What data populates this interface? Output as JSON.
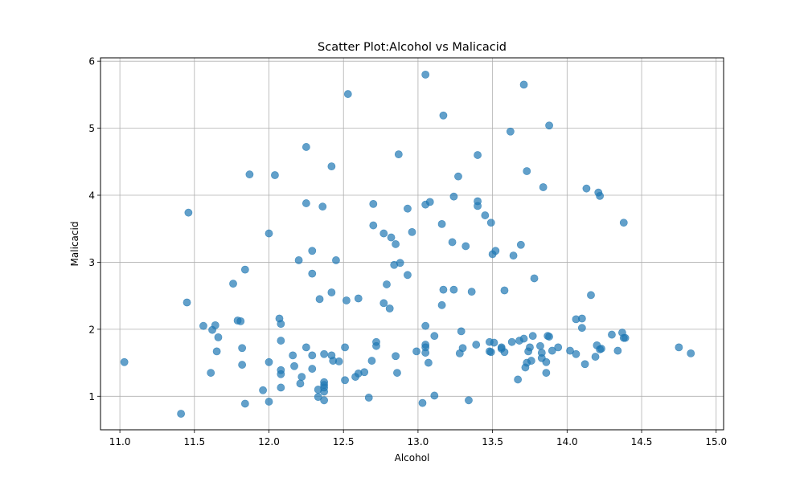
{
  "chart_data": {
    "type": "scatter",
    "title": "Scatter Plot:Alcohol vs Malicacid",
    "xlabel": "Alcohol",
    "ylabel": "Malicacid",
    "xlim": [
      10.87,
      15.05
    ],
    "ylim": [
      0.5,
      6.05
    ],
    "xticks": [
      11.0,
      11.5,
      12.0,
      12.5,
      13.0,
      13.5,
      14.0,
      14.5,
      15.0
    ],
    "xtick_labels": [
      "11.0",
      "11.5",
      "12.0",
      "12.5",
      "13.0",
      "13.5",
      "14.0",
      "14.5",
      "15.0"
    ],
    "yticks": [
      1,
      2,
      3,
      4,
      5,
      6
    ],
    "ytick_labels": [
      "1",
      "2",
      "3",
      "4",
      "5",
      "6"
    ],
    "grid": true,
    "marker_color": "#1f77b4",
    "marker_alpha": 0.7,
    "points": [
      [
        11.03,
        1.51
      ],
      [
        11.41,
        0.74
      ],
      [
        11.45,
        2.4
      ],
      [
        11.46,
        3.74
      ],
      [
        11.56,
        2.05
      ],
      [
        11.61,
        1.35
      ],
      [
        11.62,
        1.99
      ],
      [
        11.64,
        2.06
      ],
      [
        11.65,
        1.67
      ],
      [
        11.66,
        1.88
      ],
      [
        11.76,
        2.68
      ],
      [
        11.79,
        2.13
      ],
      [
        11.81,
        2.12
      ],
      [
        11.82,
        1.72
      ],
      [
        11.82,
        1.47
      ],
      [
        11.84,
        0.89
      ],
      [
        11.84,
        2.89
      ],
      [
        11.87,
        4.31
      ],
      [
        11.96,
        1.09
      ],
      [
        12.0,
        0.92
      ],
      [
        12.0,
        3.43
      ],
      [
        12.0,
        1.51
      ],
      [
        12.04,
        4.3
      ],
      [
        12.07,
        2.16
      ],
      [
        12.08,
        1.13
      ],
      [
        12.08,
        1.33
      ],
      [
        12.08,
        1.83
      ],
      [
        12.08,
        2.08
      ],
      [
        12.08,
        1.39
      ],
      [
        12.16,
        1.61
      ],
      [
        12.17,
        1.45
      ],
      [
        12.2,
        3.03
      ],
      [
        12.21,
        1.19
      ],
      [
        12.22,
        1.29
      ],
      [
        12.25,
        1.73
      ],
      [
        12.25,
        3.88
      ],
      [
        12.25,
        4.72
      ],
      [
        12.29,
        1.61
      ],
      [
        12.29,
        2.83
      ],
      [
        12.29,
        1.41
      ],
      [
        12.29,
        3.17
      ],
      [
        12.33,
        0.99
      ],
      [
        12.33,
        1.1
      ],
      [
        12.34,
        2.45
      ],
      [
        12.36,
        3.83
      ],
      [
        12.37,
        1.07
      ],
      [
        12.37,
        1.17
      ],
      [
        12.37,
        1.13
      ],
      [
        12.37,
        1.21
      ],
      [
        12.37,
        0.94
      ],
      [
        12.37,
        1.63
      ],
      [
        12.42,
        4.43
      ],
      [
        12.42,
        2.55
      ],
      [
        12.42,
        1.61
      ],
      [
        12.43,
        1.53
      ],
      [
        12.45,
        3.03
      ],
      [
        12.47,
        1.52
      ],
      [
        12.51,
        1.73
      ],
      [
        12.51,
        1.24
      ],
      [
        12.52,
        2.43
      ],
      [
        12.53,
        5.51
      ],
      [
        12.58,
        1.29
      ],
      [
        12.6,
        1.34
      ],
      [
        12.6,
        2.46
      ],
      [
        12.64,
        1.36
      ],
      [
        12.67,
        0.98
      ],
      [
        12.69,
        1.53
      ],
      [
        12.7,
        3.87
      ],
      [
        12.7,
        3.55
      ],
      [
        12.72,
        1.75
      ],
      [
        12.72,
        1.81
      ],
      [
        12.77,
        3.43
      ],
      [
        12.77,
        2.39
      ],
      [
        12.79,
        2.67
      ],
      [
        12.81,
        2.31
      ],
      [
        12.82,
        3.37
      ],
      [
        12.84,
        2.96
      ],
      [
        12.85,
        3.27
      ],
      [
        12.85,
        1.6
      ],
      [
        12.86,
        1.35
      ],
      [
        12.87,
        4.61
      ],
      [
        12.88,
        2.99
      ],
      [
        12.93,
        3.8
      ],
      [
        12.93,
        2.81
      ],
      [
        12.96,
        3.45
      ],
      [
        12.99,
        1.67
      ],
      [
        13.03,
        0.9
      ],
      [
        13.05,
        1.73
      ],
      [
        13.05,
        3.86
      ],
      [
        13.05,
        1.77
      ],
      [
        13.05,
        1.65
      ],
      [
        13.05,
        5.8
      ],
      [
        13.05,
        2.05
      ],
      [
        13.07,
        1.5
      ],
      [
        13.08,
        3.9
      ],
      [
        13.11,
        1.01
      ],
      [
        13.11,
        1.9
      ],
      [
        13.16,
        3.57
      ],
      [
        13.16,
        2.36
      ],
      [
        13.17,
        5.19
      ],
      [
        13.17,
        2.59
      ],
      [
        13.23,
        3.3
      ],
      [
        13.24,
        2.59
      ],
      [
        13.24,
        3.98
      ],
      [
        13.27,
        4.28
      ],
      [
        13.28,
        1.64
      ],
      [
        13.29,
        1.97
      ],
      [
        13.3,
        1.72
      ],
      [
        13.32,
        3.24
      ],
      [
        13.34,
        0.94
      ],
      [
        13.36,
        2.56
      ],
      [
        13.39,
        1.77
      ],
      [
        13.4,
        4.6
      ],
      [
        13.4,
        3.91
      ],
      [
        13.4,
        3.84
      ],
      [
        13.45,
        3.7
      ],
      [
        13.48,
        1.81
      ],
      [
        13.48,
        1.67
      ],
      [
        13.49,
        1.66
      ],
      [
        13.49,
        3.59
      ],
      [
        13.5,
        3.12
      ],
      [
        13.51,
        1.8
      ],
      [
        13.52,
        3.17
      ],
      [
        13.56,
        1.71
      ],
      [
        13.56,
        1.73
      ],
      [
        13.58,
        1.66
      ],
      [
        13.58,
        2.58
      ],
      [
        13.62,
        4.95
      ],
      [
        13.63,
        1.81
      ],
      [
        13.64,
        3.1
      ],
      [
        13.67,
        1.25
      ],
      [
        13.68,
        1.83
      ],
      [
        13.69,
        3.26
      ],
      [
        13.71,
        1.86
      ],
      [
        13.71,
        5.65
      ],
      [
        13.72,
        1.43
      ],
      [
        13.73,
        4.36
      ],
      [
        13.73,
        1.5
      ],
      [
        13.74,
        1.67
      ],
      [
        13.75,
        1.73
      ],
      [
        13.76,
        1.53
      ],
      [
        13.77,
        1.9
      ],
      [
        13.78,
        2.76
      ],
      [
        13.82,
        1.75
      ],
      [
        13.83,
        1.57
      ],
      [
        13.83,
        1.65
      ],
      [
        13.84,
        4.12
      ],
      [
        13.86,
        1.35
      ],
      [
        13.86,
        1.51
      ],
      [
        13.87,
        1.9
      ],
      [
        13.88,
        1.89
      ],
      [
        13.88,
        5.04
      ],
      [
        13.9,
        1.68
      ],
      [
        13.94,
        1.73
      ],
      [
        14.02,
        1.68
      ],
      [
        14.06,
        2.15
      ],
      [
        14.06,
        1.63
      ],
      [
        14.1,
        2.16
      ],
      [
        14.1,
        2.02
      ],
      [
        14.12,
        1.48
      ],
      [
        14.13,
        4.1
      ],
      [
        14.16,
        2.51
      ],
      [
        14.19,
        1.59
      ],
      [
        14.2,
        1.76
      ],
      [
        14.21,
        4.04
      ],
      [
        14.22,
        3.99
      ],
      [
        14.22,
        1.7
      ],
      [
        14.23,
        1.71
      ],
      [
        14.3,
        1.92
      ],
      [
        14.34,
        1.68
      ],
      [
        14.37,
        1.95
      ],
      [
        14.38,
        1.87
      ],
      [
        14.38,
        3.59
      ],
      [
        14.39,
        1.87
      ],
      [
        14.75,
        1.73
      ],
      [
        14.83,
        1.64
      ]
    ]
  }
}
